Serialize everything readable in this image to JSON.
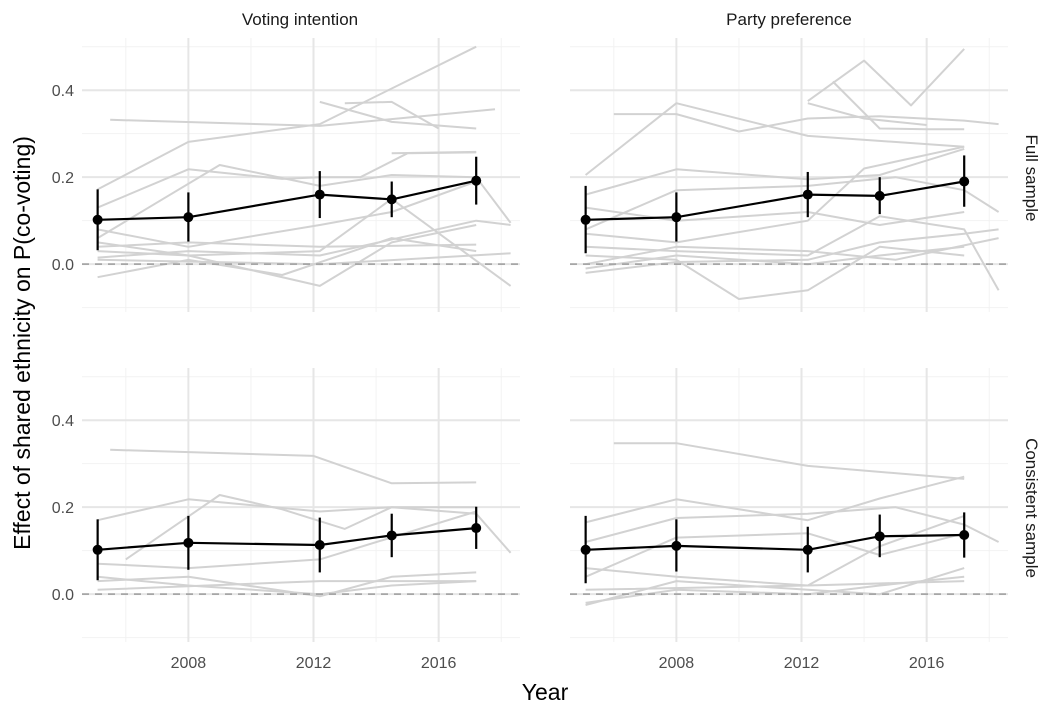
{
  "chart_data": {
    "type": "line",
    "xlabel": "Year",
    "ylabel": "Effect of shared ethnicity on P(co-voting)",
    "xlim": [
      2004.6,
      2018.6
    ],
    "ylim": [
      -0.11,
      0.52
    ],
    "x_ticks": [
      2008,
      2012,
      2016
    ],
    "x_tick_labels": [
      "2008",
      "2012",
      "2016"
    ],
    "y_ticks": [
      0.0,
      0.2,
      0.4
    ],
    "y_tick_labels": [
      "0.0",
      "0.2",
      "0.4"
    ],
    "reference_line": 0,
    "grid": true,
    "columns": [
      "Voting intention",
      "Party preference"
    ],
    "rows": [
      "Full sample",
      "Consistent sample"
    ],
    "panels": [
      {
        "column": "Voting intention",
        "row": "Full sample",
        "estimate": {
          "x": [
            2005.1,
            2008.0,
            2012.2,
            2014.5,
            2017.2
          ],
          "y": [
            0.102,
            0.108,
            0.16,
            0.149,
            0.192
          ],
          "lower": [
            0.032,
            0.052,
            0.106,
            0.108,
            0.137
          ],
          "upper": [
            0.172,
            0.165,
            0.214,
            0.19,
            0.247
          ]
        },
        "background_series": [
          {
            "x": [
              2005.5,
              2012.2,
              2017.8
            ],
            "y": [
              0.332,
              0.318,
              0.356
            ]
          },
          {
            "x": [
              2005.1,
              2008.0,
              2012.2,
              2017.2
            ],
            "y": [
              0.172,
              0.281,
              0.322,
              0.5
            ]
          },
          {
            "x": [
              2012.2,
              2014.5,
              2017.2
            ],
            "y": [
              0.373,
              0.327,
              0.312
            ]
          },
          {
            "x": [
              2013.0,
              2014.5,
              2016.0
            ],
            "y": [
              0.37,
              0.373,
              0.312
            ]
          },
          {
            "x": [
              2014.5,
              2017.2
            ],
            "y": [
              0.255,
              0.258
            ]
          },
          {
            "x": [
              2005.1,
              2008.0,
              2011.0,
              2012.2,
              2013.5,
              2015.0,
              2017.2
            ],
            "y": [
              0.13,
              0.218,
              0.196,
              0.2,
              0.2,
              0.255,
              0.257
            ]
          },
          {
            "x": [
              2005.1,
              2009.0,
              2012.2,
              2014.5,
              2017.2,
              2018.3
            ],
            "y": [
              0.06,
              0.228,
              0.18,
              0.205,
              0.2,
              0.095
            ]
          },
          {
            "x": [
              2005.1,
              2008.0,
              2012.2,
              2014.5,
              2018.3
            ],
            "y": [
              0.05,
              0.02,
              0.03,
              0.15,
              -0.05
            ]
          },
          {
            "x": [
              2005.1,
              2008.0,
              2012.2,
              2014.5,
              2017.2
            ],
            "y": [
              0.08,
              0.04,
              0.09,
              0.12,
              0.19
            ]
          },
          {
            "x": [
              2005.1,
              2008.0,
              2012.2,
              2017.2
            ],
            "y": [
              0.04,
              0.05,
              0.04,
              0.045
            ]
          },
          {
            "x": [
              2005.1,
              2008.0,
              2012.2,
              2014.5,
              2017.2
            ],
            "y": [
              0.03,
              0.02,
              -0.05,
              0.05,
              0.09
            ]
          },
          {
            "x": [
              2005.1,
              2008.0,
              2011.0,
              2014.5,
              2017.2
            ],
            "y": [
              -0.03,
              0.01,
              -0.025,
              0.06,
              0.03
            ]
          },
          {
            "x": [
              2005.1,
              2012.2,
              2018.3
            ],
            "y": [
              0.01,
              0.0,
              0.025
            ]
          },
          {
            "x": [
              2005.1,
              2008.0,
              2012.2,
              2017.2,
              2018.3
            ],
            "y": [
              0.015,
              0.03,
              0.02,
              0.1,
              0.09
            ]
          }
        ]
      },
      {
        "column": "Party preference",
        "row": "Full sample",
        "estimate": {
          "x": [
            2005.1,
            2008.0,
            2012.2,
            2014.5,
            2017.2
          ],
          "y": [
            0.102,
            0.108,
            0.16,
            0.157,
            0.19
          ],
          "lower": [
            0.025,
            0.052,
            0.108,
            0.115,
            0.132
          ],
          "upper": [
            0.18,
            0.165,
            0.212,
            0.2,
            0.25
          ]
        },
        "background_series": [
          {
            "x": [
              2006.0,
              2008.0,
              2010.0,
              2012.2,
              2014.5,
              2017.2,
              2018.3
            ],
            "y": [
              0.345,
              0.345,
              0.305,
              0.335,
              0.34,
              0.33,
              0.322
            ]
          },
          {
            "x": [
              2005.1,
              2008.0,
              2012.2,
              2017.2
            ],
            "y": [
              0.205,
              0.37,
              0.295,
              0.27
            ]
          },
          {
            "x": [
              2012.2,
              2014.0,
              2015.5,
              2017.2
            ],
            "y": [
              0.375,
              0.468,
              0.365,
              0.495
            ]
          },
          {
            "x": [
              2013.0,
              2014.5,
              2016.0,
              2017.2
            ],
            "y": [
              0.42,
              0.312,
              0.31,
              0.31
            ]
          },
          {
            "x": [
              2012.2,
              2014.0,
              2016.0
            ],
            "y": [
              0.37,
              0.335,
              0.32
            ]
          },
          {
            "x": [
              2005.1,
              2008.0,
              2012.2,
              2014.5,
              2017.2
            ],
            "y": [
              0.16,
              0.218,
              0.195,
              0.205,
              0.265
            ]
          },
          {
            "x": [
              2005.1,
              2008.0,
              2012.2,
              2015.0,
              2017.2,
              2018.3
            ],
            "y": [
              0.08,
              0.17,
              0.18,
              0.2,
              0.17,
              0.12
            ]
          },
          {
            "x": [
              2005.1,
              2008.0,
              2012.2,
              2014.5,
              2017.2
            ],
            "y": [
              0.13,
              0.1,
              0.12,
              0.09,
              0.12
            ]
          },
          {
            "x": [
              2005.1,
              2008.0,
              2012.2,
              2014.0,
              2017.2
            ],
            "y": [
              0.07,
              0.05,
              0.1,
              0.22,
              0.27
            ]
          },
          {
            "x": [
              2005.1,
              2008.0,
              2012.2,
              2014.5,
              2017.2,
              2018.3
            ],
            "y": [
              0.04,
              0.03,
              0.02,
              0.11,
              0.08,
              -0.06
            ]
          },
          {
            "x": [
              2005.1,
              2008.0,
              2010.0,
              2012.2,
              2014.5,
              2017.2
            ],
            "y": [
              0.02,
              0.01,
              -0.08,
              -0.06,
              0.04,
              0.02
            ]
          },
          {
            "x": [
              2005.1,
              2008.0,
              2012.2,
              2014.5,
              2017.2,
              2018.3
            ],
            "y": [
              -0.02,
              0.005,
              0.01,
              0.05,
              0.07,
              0.08
            ]
          },
          {
            "x": [
              2005.1,
              2008.0,
              2012.2,
              2014.5,
              2017.2
            ],
            "y": [
              -0.01,
              0.02,
              0.0,
              0.02,
              0.04
            ]
          },
          {
            "x": [
              2005.1,
              2008.0,
              2012.2,
              2015.0,
              2018.3
            ],
            "y": [
              0.0,
              0.04,
              0.03,
              0.01,
              0.06
            ]
          }
        ]
      },
      {
        "column": "Voting intention",
        "row": "Consistent sample",
        "estimate": {
          "x": [
            2005.1,
            2008.0,
            2012.2,
            2014.5,
            2017.2
          ],
          "y": [
            0.102,
            0.118,
            0.113,
            0.135,
            0.152
          ],
          "lower": [
            0.032,
            0.056,
            0.05,
            0.085,
            0.104
          ],
          "upper": [
            0.172,
            0.18,
            0.176,
            0.185,
            0.201
          ]
        },
        "background_series": [
          {
            "x": [
              2005.5,
              2012.0,
              2014.5,
              2017.2
            ],
            "y": [
              0.332,
              0.318,
              0.255,
              0.257
            ]
          },
          {
            "x": [
              2005.1,
              2008.0,
              2012.2,
              2014.5,
              2017.2
            ],
            "y": [
              0.17,
              0.218,
              0.19,
              0.2,
              0.2
            ]
          },
          {
            "x": [
              2006.0,
              2009.0,
              2011.0,
              2013.0,
              2014.5,
              2017.2,
              2018.3
            ],
            "y": [
              0.08,
              0.228,
              0.195,
              0.15,
              0.2,
              0.185,
              0.095
            ]
          },
          {
            "x": [
              2005.1,
              2008.0,
              2012.2,
              2017.2
            ],
            "y": [
              0.07,
              0.06,
              0.08,
              0.19
            ]
          },
          {
            "x": [
              2005.1,
              2008.0,
              2012.2,
              2014.5,
              2017.2
            ],
            "y": [
              0.03,
              0.04,
              -0.005,
              0.04,
              0.05
            ]
          },
          {
            "x": [
              2005.1,
              2012.2,
              2014.5,
              2017.2
            ],
            "y": [
              0.01,
              0.03,
              0.03,
              0.03
            ]
          },
          {
            "x": [
              2005.1,
              2008.0,
              2012.2,
              2014.5,
              2017.2
            ],
            "y": [
              0.04,
              0.02,
              0.0,
              0.02,
              0.03
            ]
          }
        ]
      },
      {
        "column": "Party preference",
        "row": "Consistent sample",
        "estimate": {
          "x": [
            2005.1,
            2008.0,
            2012.2,
            2014.5,
            2017.2
          ],
          "y": [
            0.102,
            0.111,
            0.102,
            0.133,
            0.136
          ],
          "lower": [
            0.025,
            0.052,
            0.05,
            0.085,
            0.084
          ],
          "upper": [
            0.18,
            0.172,
            0.155,
            0.183,
            0.188
          ]
        },
        "background_series": [
          {
            "x": [
              2006.0,
              2008.0,
              2012.2,
              2017.2
            ],
            "y": [
              0.347,
              0.347,
              0.295,
              0.265
            ]
          },
          {
            "x": [
              2005.1,
              2008.0,
              2012.2,
              2014.5,
              2017.2
            ],
            "y": [
              0.165,
              0.218,
              0.17,
              0.22,
              0.27
            ]
          },
          {
            "x": [
              2005.1,
              2008.0,
              2012.2,
              2015.0,
              2017.2,
              2018.3
            ],
            "y": [
              0.12,
              0.175,
              0.185,
              0.2,
              0.16,
              0.12
            ]
          },
          {
            "x": [
              2005.1,
              2008.0,
              2012.2,
              2014.5,
              2017.2
            ],
            "y": [
              0.04,
              0.13,
              0.14,
              0.09,
              0.14
            ]
          },
          {
            "x": [
              2005.1,
              2008.0,
              2012.2,
              2014.5,
              2017.2
            ],
            "y": [
              0.06,
              0.04,
              0.02,
              0.11,
              0.18
            ]
          },
          {
            "x": [
              2005.1,
              2008.0,
              2012.2,
              2014.5,
              2017.2
            ],
            "y": [
              -0.02,
              0.01,
              0.0,
              0.02,
              0.04
            ]
          },
          {
            "x": [
              2005.1,
              2008.0,
              2012.2,
              2014.5,
              2017.2
            ],
            "y": [
              -0.025,
              0.03,
              0.01,
              0.0,
              0.06
            ]
          },
          {
            "x": [
              2005.1,
              2012.2,
              2017.2
            ],
            "y": [
              0.01,
              0.02,
              0.03
            ]
          }
        ]
      }
    ]
  }
}
